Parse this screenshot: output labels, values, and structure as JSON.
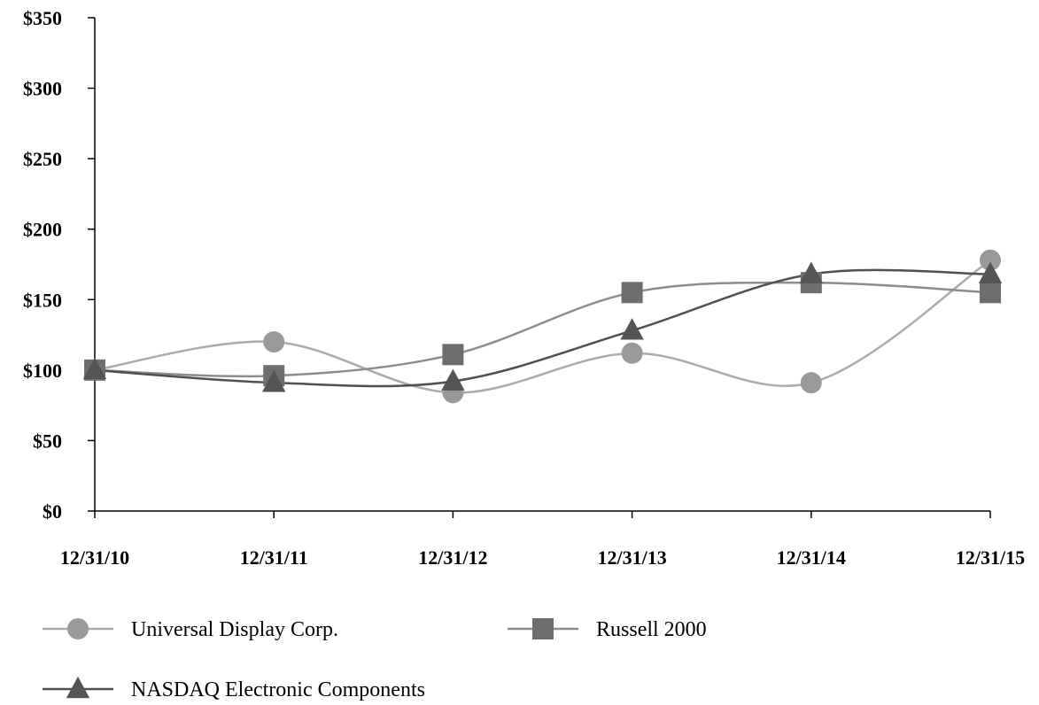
{
  "chart_data": {
    "type": "line",
    "title": "",
    "xlabel": "",
    "ylabel": "",
    "categories": [
      "12/31/10",
      "12/31/11",
      "12/31/12",
      "12/31/13",
      "12/31/14",
      "12/31/15"
    ],
    "ylim": [
      0,
      350
    ],
    "yticks": [
      0,
      50,
      100,
      150,
      200,
      250,
      300,
      350
    ],
    "ytick_labels": [
      "$0",
      "$50",
      "$100",
      "$150",
      "$200",
      "$250",
      "$300",
      "$350"
    ],
    "grid": false,
    "legend_position": "bottom-left",
    "smooth": true,
    "series": [
      {
        "name": "Universal Display Corp.",
        "marker": "circle",
        "color": "#aaaaaa",
        "marker_color": "#999999",
        "values": [
          100,
          120,
          84,
          112,
          91,
          178
        ]
      },
      {
        "name": "Russell 2000",
        "marker": "square",
        "color": "#8c8c8c",
        "marker_color": "#6e6e6e",
        "values": [
          100,
          96,
          111,
          155,
          162,
          155
        ]
      },
      {
        "name": "NASDAQ Electronic Components",
        "marker": "triangle",
        "color": "#505050",
        "marker_color": "#555555",
        "values": [
          100,
          91,
          92,
          128,
          168,
          168
        ]
      }
    ]
  }
}
